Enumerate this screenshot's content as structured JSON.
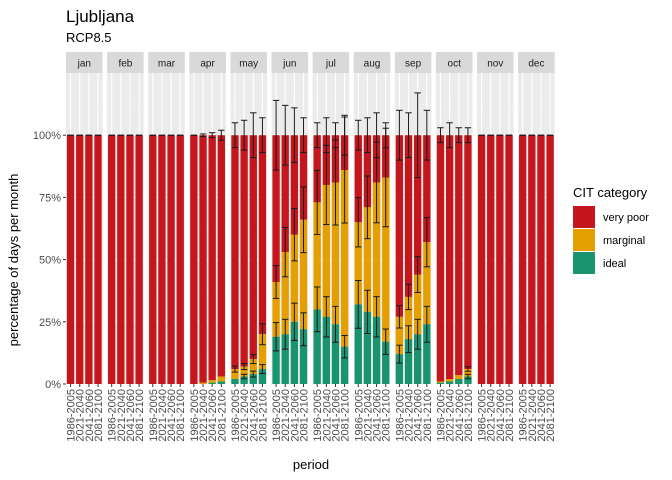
{
  "chart_data": {
    "type": "bar",
    "stacked": true,
    "faceted": true,
    "title": "Ljubljana",
    "subtitle": "RCP8.5",
    "xlabel": "period",
    "ylabel": "percentage of days per month",
    "ylim": [
      0,
      1.25
    ],
    "yticks": [
      0,
      0.25,
      0.5,
      0.75,
      1.0
    ],
    "yticklabels": [
      "0%",
      "25%",
      "50%",
      "75%",
      "100%"
    ],
    "periods": [
      "1986-2005",
      "2021-2040",
      "2041-2060",
      "2081-2100"
    ],
    "legend": {
      "title": "CIT category",
      "position": "right",
      "entries": [
        {
          "name": "very poor",
          "color": "#c4161c"
        },
        {
          "name": "marginal",
          "color": "#e69f00"
        },
        {
          "name": "ideal",
          "color": "#1a936f"
        }
      ]
    },
    "months": [
      {
        "name": "jan",
        "ideal": [
          0,
          0,
          0,
          0
        ],
        "marginal": [
          0,
          0,
          0,
          0
        ],
        "err_top": [
          1.0,
          1.0,
          1.0,
          1.0
        ]
      },
      {
        "name": "feb",
        "ideal": [
          0,
          0,
          0,
          0
        ],
        "marginal": [
          0,
          0,
          0,
          0
        ],
        "err_top": [
          1.0,
          1.0,
          1.0,
          1.0
        ]
      },
      {
        "name": "mar",
        "ideal": [
          0,
          0,
          0,
          0
        ],
        "marginal": [
          0,
          0,
          0,
          0
        ],
        "err_top": [
          1.0,
          1.0,
          1.0,
          1.0
        ]
      },
      {
        "name": "apr",
        "ideal": [
          0,
          0,
          0.005,
          0.01
        ],
        "marginal": [
          0,
          0.005,
          0.01,
          0.02
        ],
        "err_top": [
          1.0,
          1.005,
          1.01,
          1.02
        ]
      },
      {
        "name": "may",
        "ideal": [
          0.02,
          0.03,
          0.04,
          0.06
        ],
        "marginal": [
          0.04,
          0.04,
          0.06,
          0.14
        ],
        "err_top": [
          1.05,
          1.06,
          1.09,
          1.07
        ]
      },
      {
        "name": "jun",
        "ideal": [
          0.19,
          0.2,
          0.25,
          0.22
        ],
        "marginal": [
          0.22,
          0.33,
          0.35,
          0.44
        ],
        "err_top": [
          1.14,
          1.12,
          1.11,
          1.07
        ]
      },
      {
        "name": "jul",
        "ideal": [
          0.3,
          0.27,
          0.24,
          0.15
        ],
        "marginal": [
          0.43,
          0.53,
          0.57,
          0.71
        ],
        "err_top": [
          1.05,
          1.07,
          1.05,
          1.08
        ]
      },
      {
        "name": "aug",
        "ideal": [
          0.32,
          0.29,
          0.27,
          0.17
        ],
        "marginal": [
          0.33,
          0.42,
          0.54,
          0.66
        ],
        "err_top": [
          1.06,
          1.07,
          1.09,
          1.05
        ]
      },
      {
        "name": "sep",
        "ideal": [
          0.12,
          0.18,
          0.2,
          0.24
        ],
        "marginal": [
          0.15,
          0.17,
          0.24,
          0.33
        ],
        "err_top": [
          1.1,
          1.09,
          1.17,
          1.1
        ]
      },
      {
        "name": "oct",
        "ideal": [
          0.005,
          0.01,
          0.02,
          0.03
        ],
        "marginal": [
          0.005,
          0.01,
          0.015,
          0.03
        ],
        "err_top": [
          1.03,
          1.05,
          1.03,
          1.03
        ]
      },
      {
        "name": "nov",
        "ideal": [
          0,
          0,
          0,
          0
        ],
        "marginal": [
          0,
          0,
          0,
          0
        ],
        "err_top": [
          1.0,
          1.0,
          1.0,
          1.0
        ]
      },
      {
        "name": "dec",
        "ideal": [
          0,
          0,
          0,
          0
        ],
        "marginal": [
          0,
          0,
          0,
          0
        ],
        "err_top": [
          1.0,
          1.0,
          1.0,
          1.0
        ]
      }
    ]
  }
}
